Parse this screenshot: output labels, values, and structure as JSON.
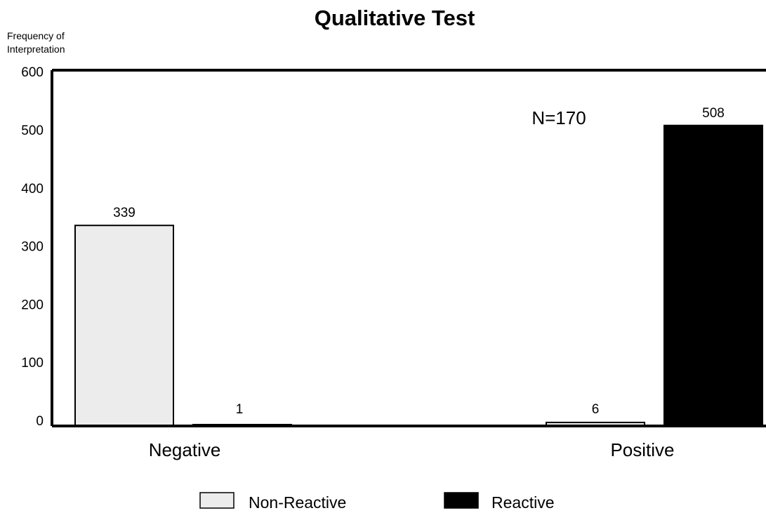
{
  "chart_data": {
    "type": "bar",
    "title": "Qualitative Test",
    "xlabel": "",
    "ylabel": [
      "Frequency of",
      "Interpretation"
    ],
    "categories": [
      "Negative",
      "Positive"
    ],
    "series": [
      {
        "name": "Non-Reactive",
        "values": [
          339,
          6
        ],
        "color": "#ececec"
      },
      {
        "name": "Reactive",
        "values": [
          1,
          508
        ],
        "color": "#000000"
      }
    ],
    "ylim": [
      0,
      600
    ],
    "yticks": [
      0,
      100,
      200,
      300,
      400,
      500,
      600
    ],
    "annotation": "N=170",
    "grid": false,
    "legend_position": "bottom"
  }
}
